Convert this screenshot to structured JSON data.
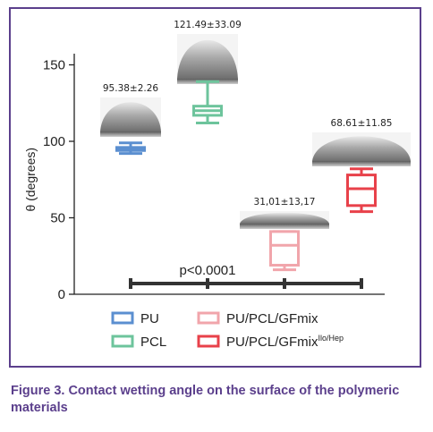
{
  "caption": "Figure 3. Contact wetting angle on the surface of the polymeric materials",
  "chart_data": {
    "type": "box",
    "ylabel": "θ (degrees)",
    "ylim": [
      0,
      160
    ],
    "yticks": [
      0,
      50,
      100,
      150
    ],
    "grid": false,
    "legend_position": "bottom",
    "series": [
      {
        "name": "PU",
        "color": "#5b8fd0",
        "min": 92,
        "q1": 94,
        "median": 95,
        "q3": 96,
        "max": 99,
        "label": "95.38±2.26"
      },
      {
        "name": "PCL",
        "color": "#6dc49c",
        "min": 112,
        "q1": 117,
        "median": 120,
        "q3": 123,
        "max": 139,
        "label": "121.49±33.09"
      },
      {
        "name": "PU/PCL/GFmix",
        "color": "#f1a5ab",
        "min": 16,
        "q1": 19,
        "median": 32,
        "q3": 41,
        "max": 41,
        "label": "31,01±13,17"
      },
      {
        "name": "PU/PCL/GFmix",
        "name_sup": "Ilo/Hep",
        "color": "#e8414a",
        "min": 54,
        "q1": 58,
        "median": 69,
        "q3": 78,
        "max": 82,
        "label": "68.61±11.85"
      }
    ],
    "significance": {
      "label": "p<0.0001",
      "y": 7
    }
  }
}
